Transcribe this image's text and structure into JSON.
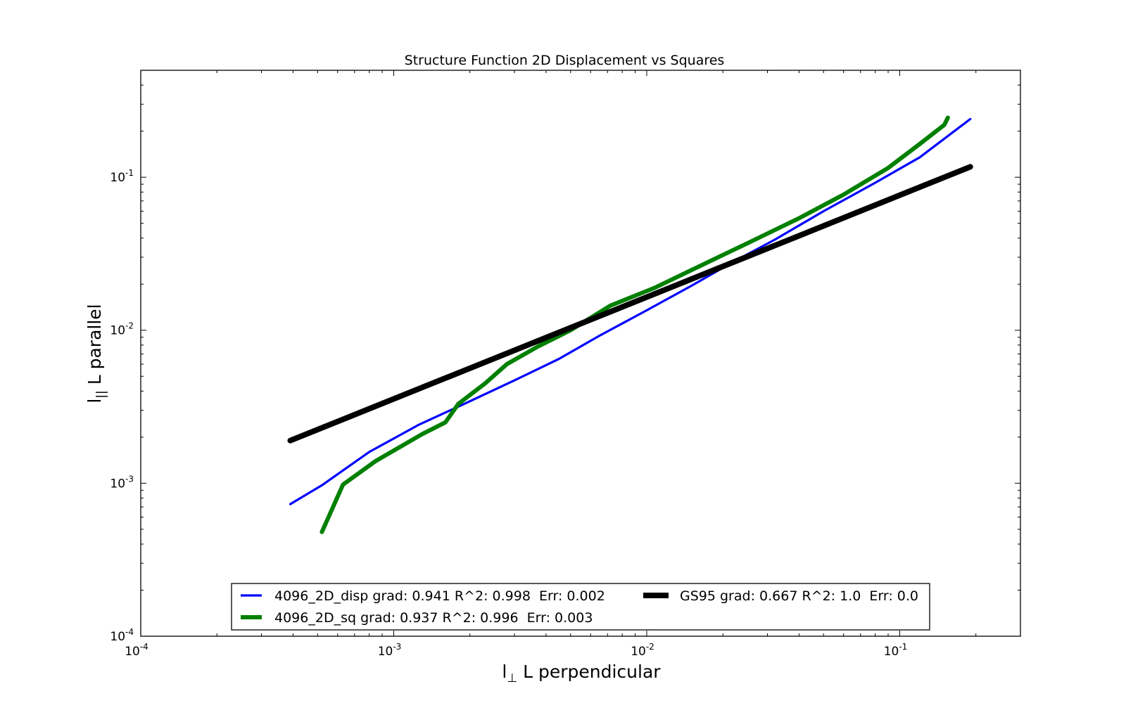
{
  "chart_data": {
    "type": "line",
    "title": "Structure Function 2D Displacement vs Squares",
    "xlabel": {
      "symbol": "l",
      "subscript": "⊥",
      "text": " L perpendicular"
    },
    "ylabel": {
      "symbol": "l",
      "subscript": "||",
      "text": " L parallel"
    },
    "xscale": "log",
    "yscale": "log",
    "xlim": [
      0.0001,
      0.3
    ],
    "ylim": [
      0.0001,
      0.5
    ],
    "xticks": [
      {
        "value": 0.0001,
        "base": "10",
        "exp": "-4"
      },
      {
        "value": 0.001,
        "base": "10",
        "exp": "-3"
      },
      {
        "value": 0.01,
        "base": "10",
        "exp": "-2"
      },
      {
        "value": 0.1,
        "base": "10",
        "exp": "-1"
      }
    ],
    "yticks": [
      {
        "value": 0.0001,
        "base": "10",
        "exp": "-4"
      },
      {
        "value": 0.001,
        "base": "10",
        "exp": "-3"
      },
      {
        "value": 0.01,
        "base": "10",
        "exp": "-2"
      },
      {
        "value": 0.1,
        "base": "10",
        "exp": "-1"
      }
    ],
    "grid": false,
    "legend_position": "lower center",
    "series": [
      {
        "name": "4096_2D_disp grad: 0.941 R^2: 0.998  Err: 0.002",
        "color": "#0000ff",
        "width": "thin",
        "x": [
          0.00039,
          0.00052,
          0.0008,
          0.00125,
          0.0019,
          0.003,
          0.0045,
          0.0065,
          0.01,
          0.015,
          0.022,
          0.032,
          0.05,
          0.08,
          0.12,
          0.19
        ],
        "y": [
          0.00073,
          0.00097,
          0.0016,
          0.0024,
          0.0033,
          0.0047,
          0.0065,
          0.0092,
          0.0135,
          0.0195,
          0.028,
          0.039,
          0.06,
          0.092,
          0.135,
          0.24
        ]
      },
      {
        "name": "4096_2D_sq grad: 0.937 R^2: 0.996  Err: 0.003",
        "color": "#008000",
        "width": "thick",
        "x": [
          0.00052,
          0.00063,
          0.00085,
          0.0013,
          0.0016,
          0.0018,
          0.0023,
          0.0028,
          0.0037,
          0.005,
          0.0072,
          0.0108,
          0.016,
          0.025,
          0.04,
          0.06,
          0.09,
          0.12,
          0.15,
          0.155
        ],
        "y": [
          0.00048,
          0.00098,
          0.0014,
          0.0021,
          0.0025,
          0.0033,
          0.0045,
          0.006,
          0.0078,
          0.01,
          0.0145,
          0.019,
          0.026,
          0.037,
          0.054,
          0.077,
          0.115,
          0.165,
          0.22,
          0.245
        ]
      },
      {
        "name": "GS95 grad: 0.667 R^2: 1.0  Err: 0.0",
        "color": "#000000",
        "width": "heavy",
        "x": [
          0.00039,
          0.19
        ],
        "y": [
          0.0019,
          0.117
        ]
      }
    ]
  }
}
